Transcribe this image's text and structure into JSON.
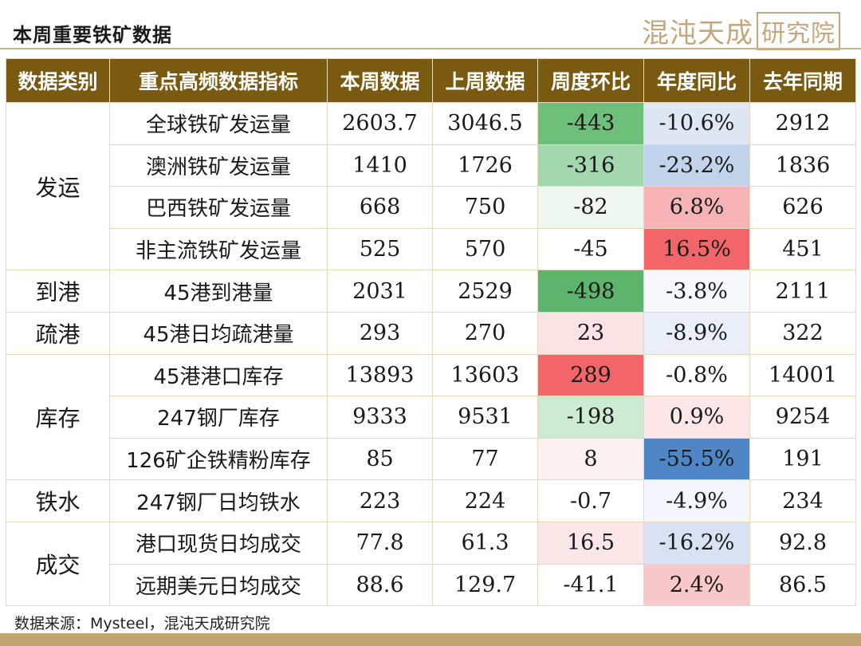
{
  "header": {
    "title": "本周重要铁矿数据",
    "logo_text": "混沌天成",
    "logo_box_text": "研究院"
  },
  "table": {
    "columns": [
      "数据类别",
      "重点高频数据指标",
      "本周数据",
      "上周数据",
      "周度环比",
      "年度同比",
      "去年同期"
    ],
    "groups": [
      {
        "category": "发运",
        "rows": [
          {
            "indicator": "全球铁矿发运量",
            "this_week": "2603.7",
            "last_week": "3046.5",
            "wow": "-443",
            "yoy": "-10.6%",
            "last_year": "2912",
            "wow_color": "#6dbf7a",
            "yoy_color": "#dfe7f5"
          },
          {
            "indicator": "澳洲铁矿发运量",
            "this_week": "1410",
            "last_week": "1726",
            "wow": "-316",
            "yoy": "-23.2%",
            "last_year": "1836",
            "wow_color": "#a3d8ae",
            "yoy_color": "#c2d3ec"
          },
          {
            "indicator": "巴西铁矿发运量",
            "this_week": "668",
            "last_week": "750",
            "wow": "-82",
            "yoy": "6.8%",
            "last_year": "626",
            "wow_color": "#eef7f0",
            "yoy_color": "#f6b4b6"
          },
          {
            "indicator": "非主流铁矿发运量",
            "this_week": "525",
            "last_week": "570",
            "wow": "-45",
            "yoy": "16.5%",
            "last_year": "451",
            "wow_color": "#ffffff",
            "yoy_color": "#f2666a"
          }
        ]
      },
      {
        "category": "到港",
        "rows": [
          {
            "indicator": "45港到港量",
            "this_week": "2031",
            "last_week": "2529",
            "wow": "-498",
            "yoy": "-3.8%",
            "last_year": "2111",
            "wow_color": "#5db56d",
            "yoy_color": "#f7f8fc"
          }
        ]
      },
      {
        "category": "疏港",
        "rows": [
          {
            "indicator": "45港日均疏港量",
            "this_week": "293",
            "last_week": "270",
            "wow": "23",
            "yoy": "-8.9%",
            "last_year": "322",
            "wow_color": "#fbe2e3",
            "yoy_color": "#e9eef8"
          }
        ]
      },
      {
        "category": "库存",
        "rows": [
          {
            "indicator": "45港港口库存",
            "this_week": "13893",
            "last_week": "13603",
            "wow": "289",
            "yoy": "-0.8%",
            "last_year": "14001",
            "wow_color": "#f2666a",
            "yoy_color": "#fdfdfe"
          },
          {
            "indicator": "247钢厂库存",
            "this_week": "9333",
            "last_week": "9531",
            "wow": "-198",
            "yoy": "0.9%",
            "last_year": "9254",
            "wow_color": "#cdebd3",
            "yoy_color": "#fde6e7"
          },
          {
            "indicator": "126矿企铁精粉库存",
            "this_week": "85",
            "last_week": "77",
            "wow": "8",
            "yoy": "-55.5%",
            "last_year": "191",
            "wow_color": "#fdf0f1",
            "yoy_color": "#4f86c6"
          }
        ]
      },
      {
        "category": "铁水",
        "rows": [
          {
            "indicator": "247钢厂日均铁水",
            "this_week": "223",
            "last_week": "224",
            "wow": "-0.7",
            "yoy": "-4.9%",
            "last_year": "234",
            "wow_color": "#ffffff",
            "yoy_color": "#f4f6fb"
          }
        ]
      },
      {
        "category": "成交",
        "rows": [
          {
            "indicator": "港口现货日均成交",
            "this_week": "77.8",
            "last_week": "61.3",
            "wow": "16.5",
            "yoy": "-16.2%",
            "last_year": "92.8",
            "wow_color": "#fce7e8",
            "yoy_color": "#d8e2f2"
          },
          {
            "indicator": "远期美元日均成交",
            "this_week": "88.6",
            "last_week": "129.7",
            "wow": "-41.1",
            "yoy": "2.4%",
            "last_year": "86.5",
            "wow_color": "#ffffff",
            "yoy_color": "#f8c8ca"
          }
        ]
      }
    ]
  },
  "footer": {
    "source": "数据来源：Mysteel，混沌天成研究院"
  },
  "colors": {
    "header_bg": "#7a5a10",
    "grid": "#e6d8b8",
    "accent": "#c6a77c"
  }
}
